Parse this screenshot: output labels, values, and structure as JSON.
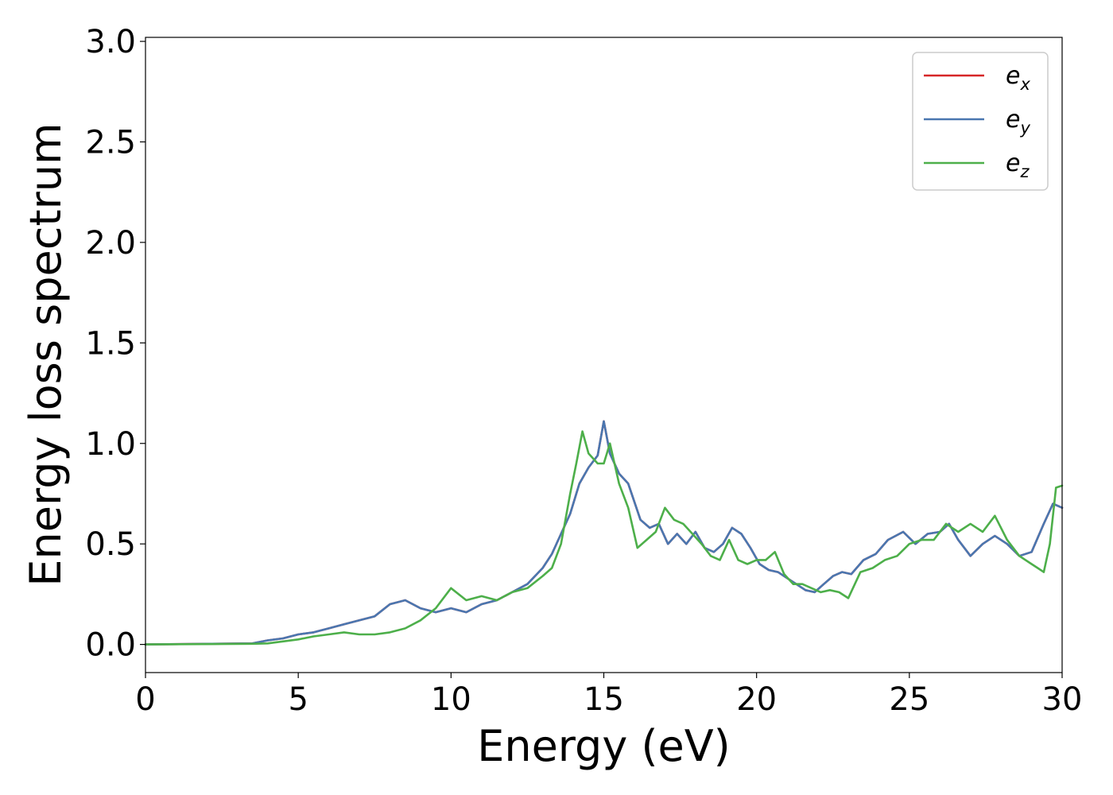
{
  "chart_data": {
    "type": "line",
    "xlabel": "Energy (eV)",
    "ylabel": "Energy loss spectrum",
    "xlim": [
      0,
      30
    ],
    "ylim": [
      -0.14,
      3.02
    ],
    "xticks": [
      0,
      5,
      10,
      15,
      20,
      25,
      30
    ],
    "xtick_labels": [
      "0",
      "5",
      "10",
      "15",
      "20",
      "25",
      "30"
    ],
    "yticks": [
      0.0,
      0.5,
      1.0,
      1.5,
      2.0,
      2.5,
      3.0
    ],
    "ytick_labels": [
      "0.0",
      "0.5",
      "1.0",
      "1.5",
      "2.0",
      "2.5",
      "3.0"
    ],
    "grid": false,
    "legend_position": "top-right",
    "series": [
      {
        "name": "e",
        "subscript": "x",
        "color": "#d62728",
        "hidden_under": "e_y",
        "x": [
          0,
          3.5,
          4,
          4.5,
          5,
          5.5,
          6,
          6.5,
          7,
          7.5,
          8,
          8.5,
          9,
          9.5,
          10,
          10.5,
          11,
          11.5,
          12,
          12.5,
          13,
          13.3,
          13.6,
          13.9,
          14.2,
          14.5,
          14.8,
          15.0,
          15.2,
          15.5,
          15.8,
          16.2,
          16.5,
          16.8,
          17.1,
          17.4,
          17.7,
          18.0,
          18.3,
          18.6,
          18.9,
          19.2,
          19.5,
          19.8,
          20.1,
          20.4,
          20.7,
          21.0,
          21.3,
          21.6,
          21.9,
          22.2,
          22.5,
          22.8,
          23.1,
          23.5,
          23.9,
          24.3,
          24.8,
          25.2,
          25.6,
          26.0,
          26.3,
          26.6,
          27.0,
          27.4,
          27.8,
          28.2,
          28.6,
          29.0,
          29.4,
          29.7,
          30.0
        ],
        "y": [
          0.0,
          0.005,
          0.02,
          0.03,
          0.05,
          0.06,
          0.08,
          0.1,
          0.12,
          0.14,
          0.2,
          0.22,
          0.18,
          0.16,
          0.18,
          0.16,
          0.2,
          0.22,
          0.26,
          0.3,
          0.38,
          0.45,
          0.55,
          0.65,
          0.8,
          0.88,
          0.94,
          1.11,
          0.95,
          0.85,
          0.8,
          0.62,
          0.58,
          0.6,
          0.5,
          0.55,
          0.5,
          0.56,
          0.48,
          0.46,
          0.5,
          0.58,
          0.55,
          0.48,
          0.4,
          0.37,
          0.36,
          0.33,
          0.3,
          0.27,
          0.26,
          0.3,
          0.34,
          0.36,
          0.35,
          0.42,
          0.45,
          0.52,
          0.56,
          0.5,
          0.55,
          0.56,
          0.6,
          0.52,
          0.44,
          0.5,
          0.54,
          0.5,
          0.44,
          0.46,
          0.6,
          0.7,
          0.68
        ]
      },
      {
        "name": "e",
        "subscript": "y",
        "color": "#4a77b0",
        "x": [
          0,
          3.5,
          4,
          4.5,
          5,
          5.5,
          6,
          6.5,
          7,
          7.5,
          8,
          8.5,
          9,
          9.5,
          10,
          10.5,
          11,
          11.5,
          12,
          12.5,
          13,
          13.3,
          13.6,
          13.9,
          14.2,
          14.5,
          14.8,
          15.0,
          15.2,
          15.5,
          15.8,
          16.2,
          16.5,
          16.8,
          17.1,
          17.4,
          17.7,
          18.0,
          18.3,
          18.6,
          18.9,
          19.2,
          19.5,
          19.8,
          20.1,
          20.4,
          20.7,
          21.0,
          21.3,
          21.6,
          21.9,
          22.2,
          22.5,
          22.8,
          23.1,
          23.5,
          23.9,
          24.3,
          24.8,
          25.2,
          25.6,
          26.0,
          26.3,
          26.6,
          27.0,
          27.4,
          27.8,
          28.2,
          28.6,
          29.0,
          29.4,
          29.7,
          30.0
        ],
        "y": [
          0.0,
          0.005,
          0.02,
          0.03,
          0.05,
          0.06,
          0.08,
          0.1,
          0.12,
          0.14,
          0.2,
          0.22,
          0.18,
          0.16,
          0.18,
          0.16,
          0.2,
          0.22,
          0.26,
          0.3,
          0.38,
          0.45,
          0.55,
          0.65,
          0.8,
          0.88,
          0.94,
          1.11,
          0.95,
          0.85,
          0.8,
          0.62,
          0.58,
          0.6,
          0.5,
          0.55,
          0.5,
          0.56,
          0.48,
          0.46,
          0.5,
          0.58,
          0.55,
          0.48,
          0.4,
          0.37,
          0.36,
          0.33,
          0.3,
          0.27,
          0.26,
          0.3,
          0.34,
          0.36,
          0.35,
          0.42,
          0.45,
          0.52,
          0.56,
          0.5,
          0.55,
          0.56,
          0.6,
          0.52,
          0.44,
          0.5,
          0.54,
          0.5,
          0.44,
          0.46,
          0.6,
          0.7,
          0.68
        ]
      },
      {
        "name": "e",
        "subscript": "z",
        "color": "#4daf4a",
        "x": [
          0,
          3.5,
          4,
          4.5,
          5,
          5.5,
          6,
          6.5,
          7,
          7.5,
          8,
          8.5,
          9,
          9.5,
          10,
          10.5,
          11,
          11.5,
          12,
          12.5,
          13,
          13.3,
          13.6,
          13.9,
          14.1,
          14.3,
          14.5,
          14.8,
          15.0,
          15.2,
          15.5,
          15.8,
          16.1,
          16.4,
          16.7,
          17.0,
          17.3,
          17.6,
          17.9,
          18.2,
          18.5,
          18.8,
          19.1,
          19.4,
          19.7,
          20.0,
          20.3,
          20.6,
          20.9,
          21.2,
          21.5,
          21.8,
          22.1,
          22.4,
          22.7,
          23.0,
          23.4,
          23.8,
          24.2,
          24.6,
          25.0,
          25.4,
          25.8,
          26.2,
          26.6,
          27.0,
          27.4,
          27.8,
          28.2,
          28.6,
          29.0,
          29.2,
          29.4,
          29.6,
          29.8,
          30.0
        ],
        "y": [
          0.0,
          0.003,
          0.005,
          0.015,
          0.025,
          0.04,
          0.05,
          0.06,
          0.05,
          0.05,
          0.06,
          0.08,
          0.12,
          0.18,
          0.28,
          0.22,
          0.24,
          0.22,
          0.26,
          0.28,
          0.34,
          0.38,
          0.5,
          0.75,
          0.9,
          1.06,
          0.95,
          0.9,
          0.9,
          1.0,
          0.8,
          0.68,
          0.48,
          0.52,
          0.56,
          0.68,
          0.62,
          0.6,
          0.55,
          0.5,
          0.44,
          0.42,
          0.52,
          0.42,
          0.4,
          0.42,
          0.42,
          0.46,
          0.35,
          0.3,
          0.3,
          0.28,
          0.26,
          0.27,
          0.26,
          0.23,
          0.36,
          0.38,
          0.42,
          0.44,
          0.5,
          0.52,
          0.52,
          0.6,
          0.56,
          0.6,
          0.56,
          0.64,
          0.52,
          0.44,
          0.4,
          0.38,
          0.36,
          0.5,
          0.78,
          0.79
        ]
      }
    ]
  }
}
